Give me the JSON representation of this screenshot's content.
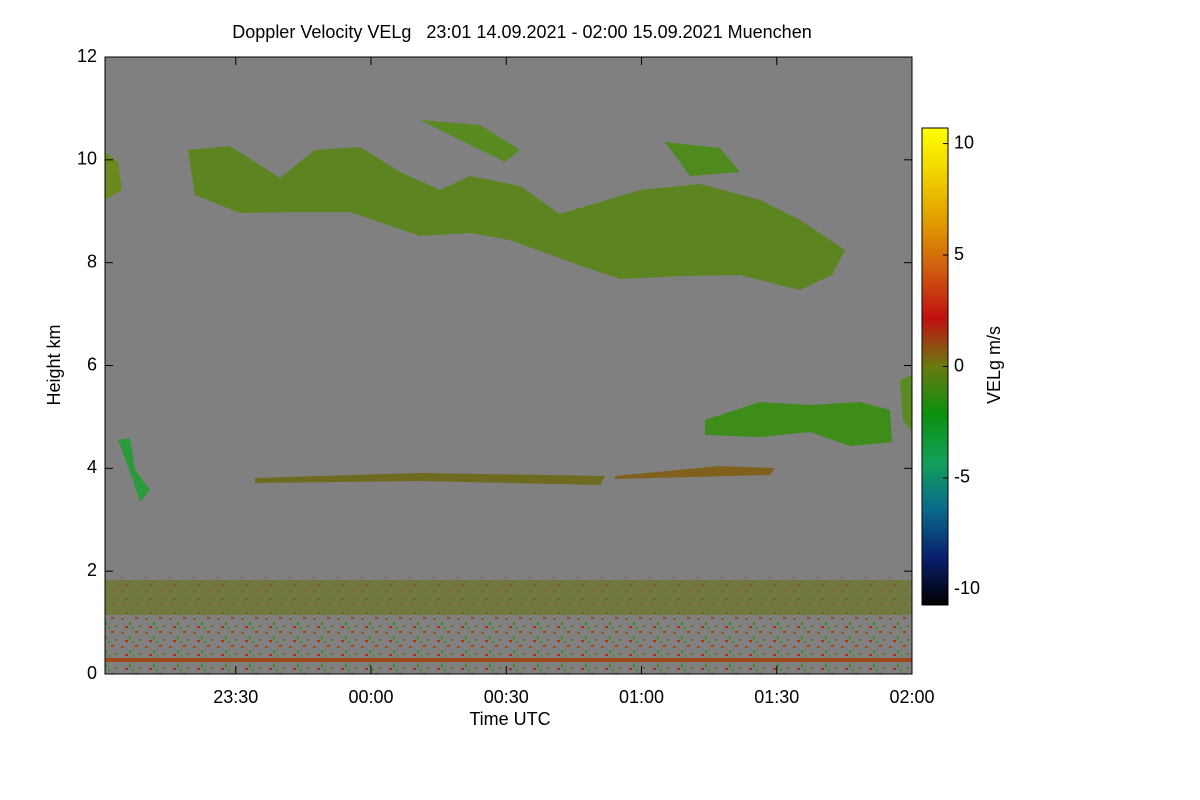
{
  "chart_data": {
    "type": "time-height",
    "title": "Doppler Velocity VELg   23:01 14.09.2021 - 02:00 15.09.2021 Muenchen",
    "xlabel": "Time UTC",
    "ylabel": "Height km",
    "xlim": [
      1381,
      1560
    ],
    "xticks": [
      {
        "value": 1410,
        "label": "23:30"
      },
      {
        "value": 1440,
        "label": "00:00"
      },
      {
        "value": 1470,
        "label": "00:30"
      },
      {
        "value": 1500,
        "label": "01:00"
      },
      {
        "value": 1530,
        "label": "01:30"
      },
      {
        "value": 1560,
        "label": "02:00"
      }
    ],
    "ylim": [
      0,
      12
    ],
    "yticks": [
      0,
      2,
      4,
      6,
      8,
      10,
      12
    ],
    "colorbar": {
      "label": "VELg m/s",
      "lim": [
        -10.7,
        10.7
      ],
      "ticks": [
        -10,
        -5,
        0,
        5,
        10
      ],
      "colormap": [
        "#000000",
        "#0a1f6e",
        "#0a6a8a",
        "#12a05a",
        "#0c9010",
        "#6a7a10",
        "#c01010",
        "#d05a10",
        "#e09a00",
        "#f0d000",
        "#ffff00"
      ]
    },
    "background": "#808080"
  }
}
